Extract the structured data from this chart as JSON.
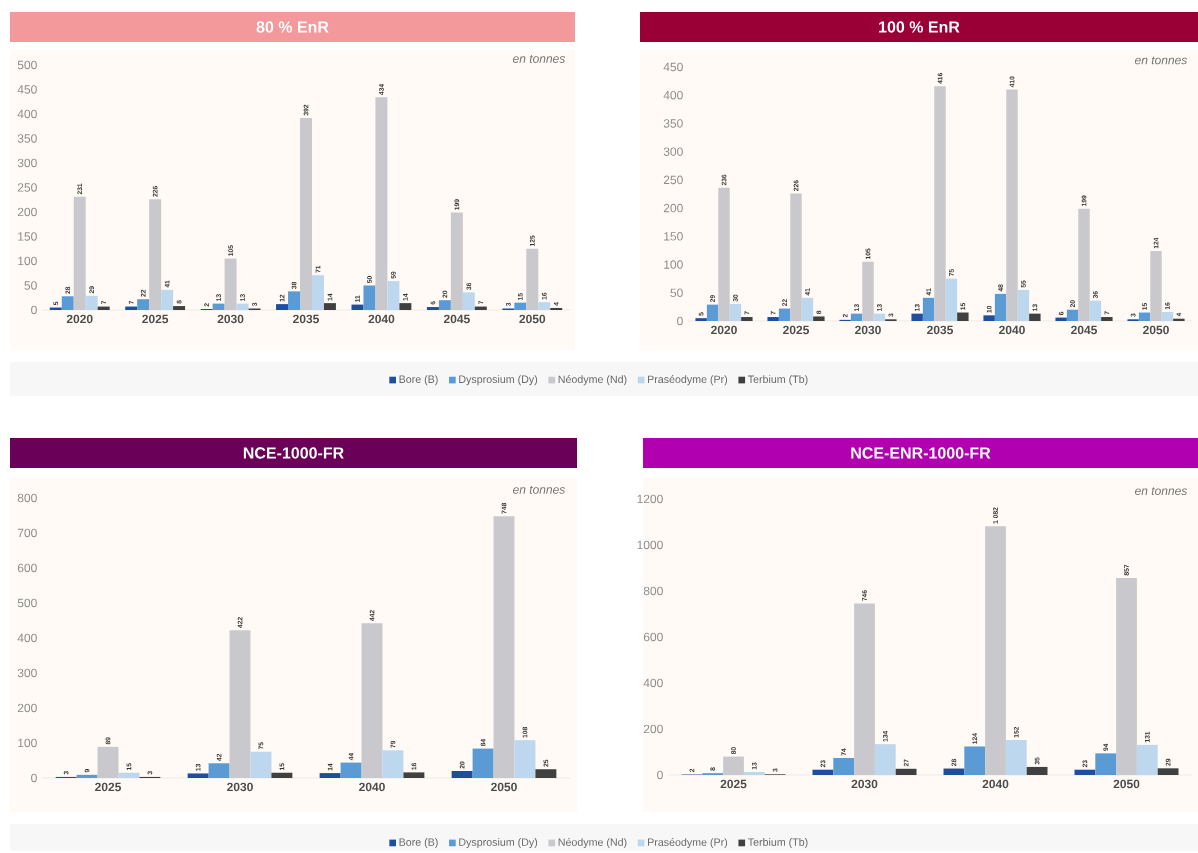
{
  "chart_data": [
    {
      "type": "bar",
      "title": "80 % EnR",
      "annotations": [
        "en tonnes"
      ],
      "categories": [
        "2020",
        "2025",
        "2030",
        "2035",
        "2040",
        "2045",
        "2050"
      ],
      "ylim": [
        0,
        500
      ],
      "yticks": [
        0,
        50,
        100,
        150,
        200,
        250,
        300,
        350,
        400,
        450,
        500
      ],
      "data_labels": true,
      "legend": "bottom",
      "series": [
        {
          "name": "Bore (B)",
          "color": "#1f4e9c",
          "values": [
            5,
            7,
            2,
            12,
            11,
            6,
            3
          ]
        },
        {
          "name": "Dysprosium (Dy)",
          "color": "#5b9bd5",
          "values": [
            28,
            22,
            13,
            38,
            50,
            20,
            15
          ]
        },
        {
          "name": "Néodyme (Nd)",
          "color": "#c9c8cc",
          "values": [
            231,
            226,
            105,
            392,
            434,
            199,
            125
          ]
        },
        {
          "name": "Praséodyme (Pr)",
          "color": "#bdd7ee",
          "values": [
            29,
            41,
            13,
            71,
            59,
            36,
            16
          ]
        },
        {
          "name": "Terbium (Tb)",
          "color": "#404040",
          "values": [
            7,
            8,
            3,
            14,
            14,
            7,
            4
          ]
        }
      ]
    },
    {
      "type": "bar",
      "title": "100 % EnR",
      "annotations": [
        "en tonnes"
      ],
      "categories": [
        "2020",
        "2025",
        "2030",
        "2035",
        "2040",
        "2045",
        "2050"
      ],
      "ylim": [
        0,
        450
      ],
      "yticks": [
        0,
        50,
        100,
        150,
        200,
        250,
        300,
        350,
        400,
        450
      ],
      "data_labels": true,
      "series": [
        {
          "color": "#1f4e9c",
          "values": [
            5,
            7,
            2,
            13,
            10,
            6,
            3
          ]
        },
        {
          "color": "#5b9bd5",
          "values": [
            29,
            22,
            13,
            41,
            48,
            20,
            15
          ]
        },
        {
          "color": "#c9c8cc",
          "values": [
            236,
            226,
            105,
            416,
            410,
            199,
            124
          ]
        },
        {
          "color": "#bdd7ee",
          "values": [
            30,
            41,
            13,
            75,
            55,
            36,
            16
          ]
        },
        {
          "color": "#404040",
          "values": [
            7,
            8,
            3,
            15,
            13,
            7,
            4
          ]
        }
      ]
    },
    {
      "type": "bar",
      "title": "NCE-1000-FR",
      "annotations": [
        "en tonnes"
      ],
      "categories": [
        "2025",
        "2030",
        "2040",
        "2050"
      ],
      "ylim": [
        0,
        800
      ],
      "yticks": [
        0,
        100,
        200,
        300,
        400,
        500,
        600,
        700,
        800
      ],
      "data_labels": true,
      "legend": "bottom",
      "series": [
        {
          "name": "Bore (B)",
          "color": "#1f4e9c",
          "values": [
            3,
            13,
            14,
            20
          ]
        },
        {
          "name": "Dysprosium (Dy)",
          "color": "#5b9bd5",
          "values": [
            9,
            42,
            44,
            84
          ]
        },
        {
          "name": "Néodyme (Nd)",
          "color": "#c9c8cc",
          "values": [
            89,
            422,
            442,
            748
          ]
        },
        {
          "name": "Praséodyme (Pr)",
          "color": "#bdd7ee",
          "values": [
            15,
            75,
            79,
            108
          ]
        },
        {
          "name": "Terbium (Tb)",
          "color": "#404040",
          "values": [
            3,
            15,
            16,
            25
          ]
        }
      ]
    },
    {
      "type": "bar",
      "title": "NCE-ENR-1000-FR",
      "annotations": [
        "en tonnes"
      ],
      "categories": [
        "2025",
        "2030",
        "2040",
        "2050"
      ],
      "ylim": [
        0,
        1200
      ],
      "yticks": [
        0,
        200,
        400,
        600,
        800,
        1000,
        1200
      ],
      "series": [
        {
          "color": "#1f4e9c",
          "values": [
            2,
            23,
            28,
            23
          ],
          "value_labels": [
            "2",
            "23",
            "28",
            "23"
          ]
        },
        {
          "color": "#5b9bd5",
          "values": [
            8,
            74,
            124,
            94
          ],
          "value_labels": [
            "8",
            "74",
            "124",
            "94"
          ]
        },
        {
          "color": "#c9c8cc",
          "values": [
            80,
            746,
            1082,
            857
          ],
          "value_labels": [
            "80",
            "746",
            "1 082",
            "857"
          ]
        },
        {
          "color": "#bdd7ee",
          "values": [
            13,
            134,
            152,
            131
          ],
          "value_labels": [
            "13",
            "134",
            "152",
            "131"
          ]
        },
        {
          "color": "#404040",
          "values": [
            3,
            27,
            35,
            29
          ],
          "value_labels": [
            "3",
            "27",
            "35",
            "29"
          ]
        }
      ]
    }
  ]
}
